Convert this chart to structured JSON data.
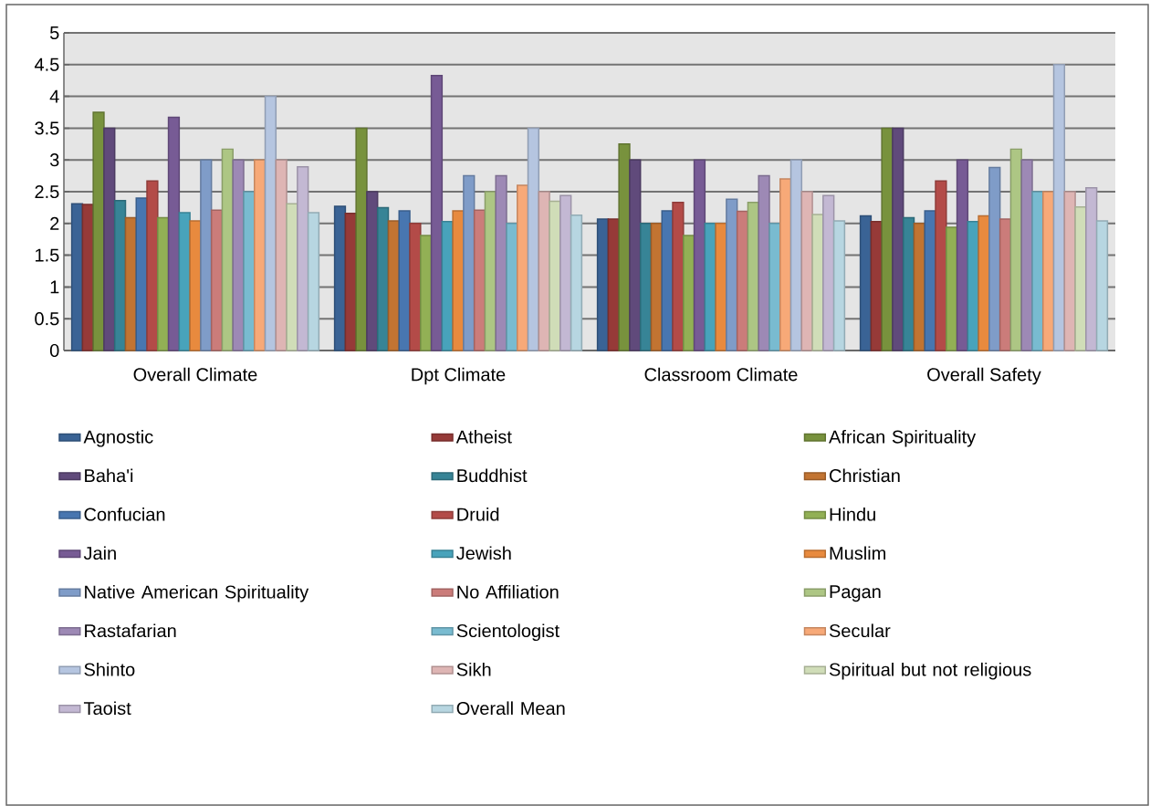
{
  "chart_data": {
    "type": "bar",
    "categories": [
      "Overall Climate",
      "Dpt Climate",
      "Classroom Climate",
      "Overall Safety"
    ],
    "ylim": [
      0,
      5
    ],
    "yticks": [
      0,
      0.5,
      1,
      1.5,
      2,
      2.5,
      3,
      3.5,
      4,
      4.5,
      5
    ],
    "grid": "y",
    "legend": "bottom",
    "series": [
      {
        "name": "Agnostic",
        "color": "#3a6395",
        "values": [
          2.31,
          2.27,
          2.07,
          2.12
        ]
      },
      {
        "name": "Atheist",
        "color": "#963a38",
        "values": [
          2.3,
          2.16,
          2.07,
          2.03
        ]
      },
      {
        "name": "African Spirituality",
        "color": "#78923d",
        "values": [
          3.75,
          3.5,
          3.25,
          3.5
        ]
      },
      {
        "name": "Baha'i",
        "color": "#604a7b",
        "values": [
          3.5,
          2.5,
          3.0,
          3.5
        ]
      },
      {
        "name": "Buddhist",
        "color": "#378496",
        "values": [
          2.36,
          2.25,
          2.0,
          2.09
        ]
      },
      {
        "name": "Christian",
        "color": "#c27432",
        "values": [
          2.09,
          2.04,
          2.0,
          2.0
        ]
      },
      {
        "name": "Confucian",
        "color": "#4876b0",
        "values": [
          2.4,
          2.2,
          2.2,
          2.2
        ]
      },
      {
        "name": "Druid",
        "color": "#b34b48",
        "values": [
          2.67,
          2.0,
          2.33,
          2.67
        ]
      },
      {
        "name": "Hindu",
        "color": "#92b055",
        "values": [
          2.09,
          1.81,
          1.81,
          1.94
        ]
      },
      {
        "name": "Jain",
        "color": "#775b95",
        "values": [
          3.67,
          4.33,
          3.0,
          3.0
        ]
      },
      {
        "name": "Jewish",
        "color": "#48a3bb",
        "values": [
          2.17,
          2.03,
          2.0,
          2.03
        ]
      },
      {
        "name": "Muslim",
        "color": "#e88a3e",
        "values": [
          2.04,
          2.2,
          2.0,
          2.12
        ]
      },
      {
        "name": "Native American Spirituality",
        "color": "#7f9cc8",
        "values": [
          3.0,
          2.75,
          2.38,
          2.88
        ]
      },
      {
        "name": "No Affiliation",
        "color": "#cb7c7a",
        "values": [
          2.21,
          2.21,
          2.19,
          2.07
        ]
      },
      {
        "name": "Pagan",
        "color": "#adc684",
        "values": [
          3.17,
          2.5,
          2.33,
          3.17
        ]
      },
      {
        "name": "Rastafarian",
        "color": "#9d89b5",
        "values": [
          3.0,
          2.75,
          2.75,
          3.0
        ]
      },
      {
        "name": "Scientologist",
        "color": "#79bbd0",
        "values": [
          2.5,
          2.0,
          2.0,
          2.5
        ]
      },
      {
        "name": "Secular",
        "color": "#f7a978",
        "values": [
          3.0,
          2.6,
          2.7,
          2.5
        ]
      },
      {
        "name": "Shinto",
        "color": "#b5c5e0",
        "values": [
          4.0,
          3.5,
          3.0,
          4.5
        ]
      },
      {
        "name": "Sikh",
        "color": "#deb5b4",
        "values": [
          3.0,
          2.5,
          2.5,
          2.5
        ]
      },
      {
        "name": "Spiritual but not religious",
        "color": "#d0ddb8",
        "values": [
          2.31,
          2.35,
          2.14,
          2.26
        ]
      },
      {
        "name": "Taoist",
        "color": "#c3b8d3",
        "values": [
          2.89,
          2.44,
          2.44,
          2.56
        ]
      },
      {
        "name": "Overall Mean",
        "color": "#b7d6e1",
        "values": [
          2.17,
          2.13,
          2.04,
          2.04
        ]
      }
    ]
  }
}
